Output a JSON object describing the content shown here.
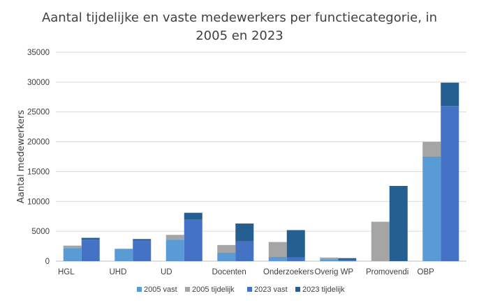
{
  "chart_data": {
    "type": "bar",
    "subtype": "stacked-grouped",
    "title_lines": [
      "Aantal tijdelijke en vaste medewerkers per functiecategorie, in",
      "2005 en 2023"
    ],
    "xlabel": "",
    "ylabel": "Aantal medewerkers",
    "ylim": [
      0,
      35000
    ],
    "yticks": [
      0,
      5000,
      10000,
      15000,
      20000,
      25000,
      30000,
      35000
    ],
    "grid": true,
    "legend_position": "bottom",
    "categories": [
      "HGL",
      "UHD",
      "UD",
      "Docenten",
      "Onderzoekers",
      "Overig WP",
      "Promovendi",
      "OBP"
    ],
    "series": [
      {
        "name": "2005 vast",
        "stack": "2005",
        "color": "#5b9bd5",
        "values": [
          2200,
          2000,
          3600,
          1400,
          700,
          300,
          0,
          17500
        ]
      },
      {
        "name": "2005 tijdelijk",
        "stack": "2005",
        "color": "#a5a5a5",
        "values": [
          400,
          100,
          800,
          1300,
          2500,
          300,
          6600,
          2500
        ]
      },
      {
        "name": "2023 vast",
        "stack": "2023",
        "color": "#4472c4",
        "values": [
          3600,
          3500,
          7000,
          3300,
          600,
          200,
          0,
          26000
        ]
      },
      {
        "name": "2023 tijdelijk",
        "stack": "2023",
        "color": "#255e91",
        "values": [
          300,
          200,
          1100,
          3000,
          4600,
          300,
          12600,
          3900
        ]
      }
    ]
  }
}
